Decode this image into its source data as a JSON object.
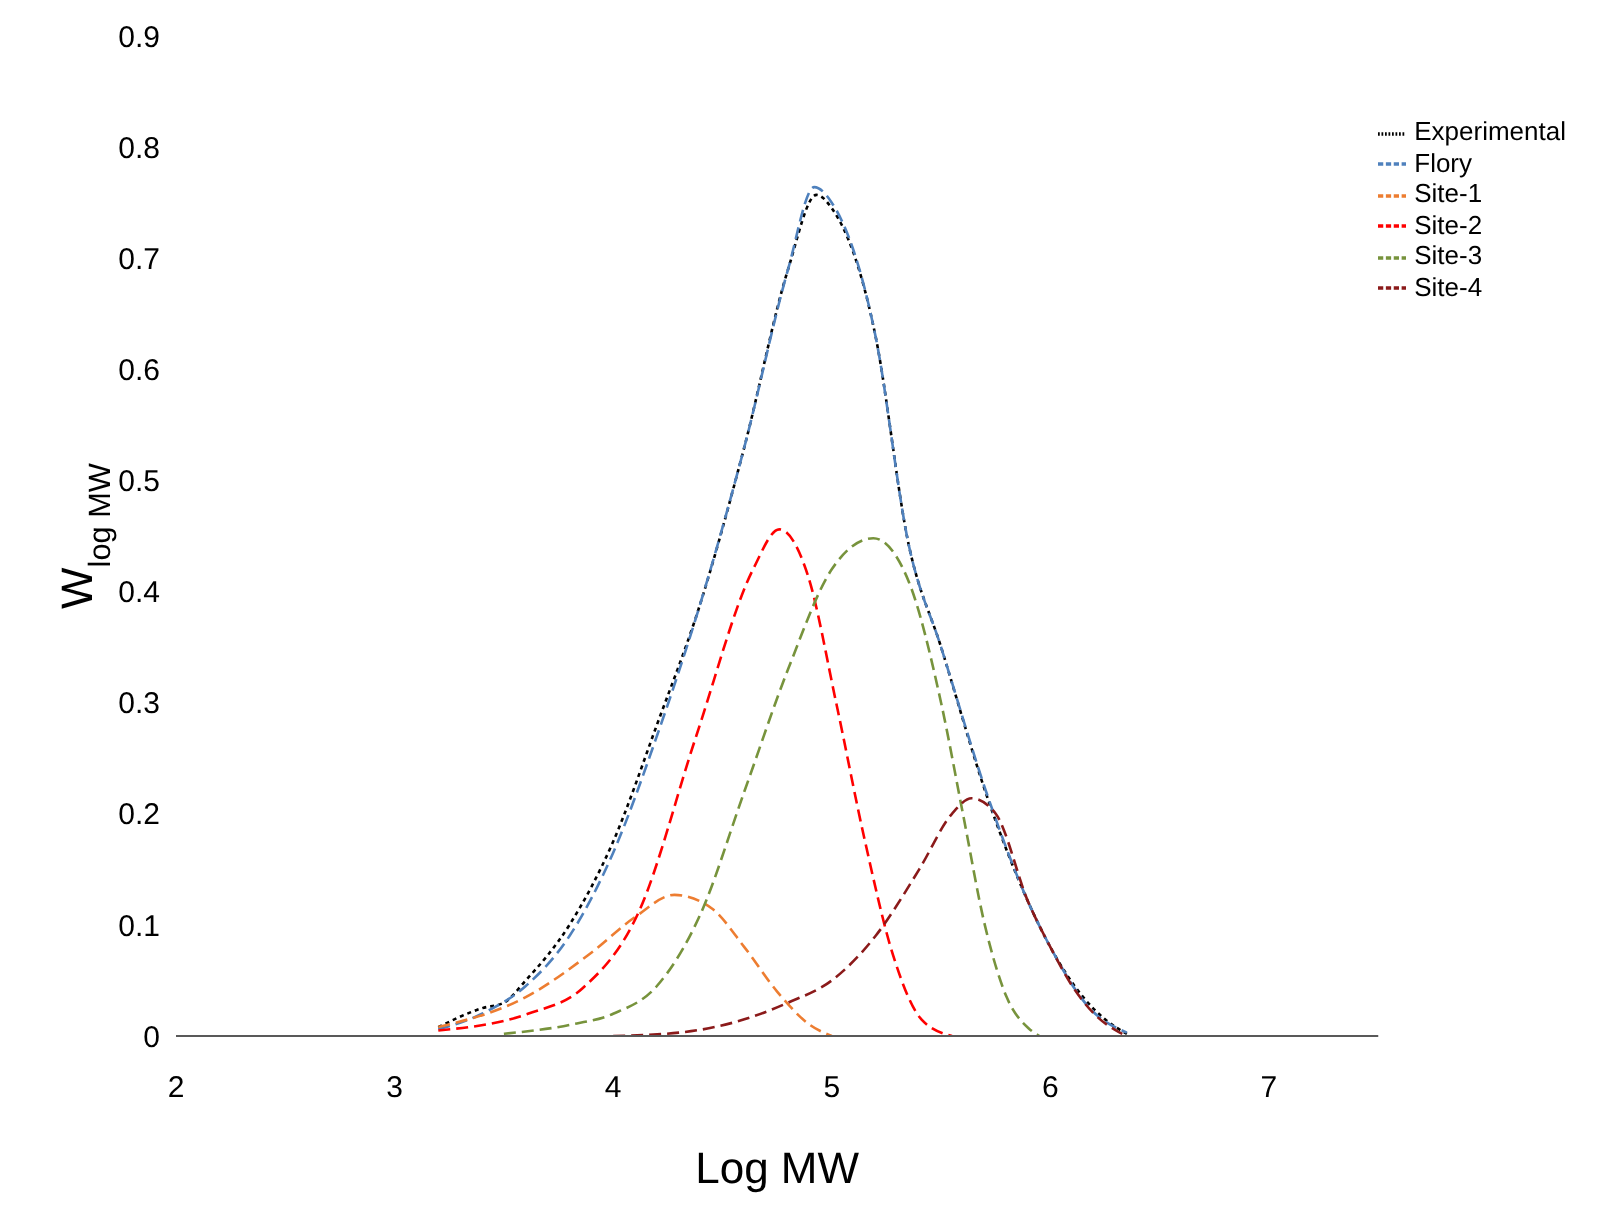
{
  "chart_data": {
    "type": "line",
    "xlabel": "Log MW",
    "ylabel": "W$_{log MW}$",
    "xlim": [
      2,
      7.5
    ],
    "xticks": [
      2,
      3,
      4,
      5,
      6,
      7
    ],
    "ylim": [
      0,
      0.9
    ],
    "yticks": [
      0,
      0.1,
      0.2,
      0.3,
      0.4,
      0.5,
      0.6,
      0.7,
      0.8,
      0.9
    ],
    "grid": false,
    "legend": "top right",
    "marker": "none",
    "series": [
      {
        "name": "Experimental",
        "color": "#000000",
        "line_style": "dotted",
        "x": [
          3.2,
          3.4,
          3.5,
          3.6,
          3.8,
          4.0,
          4.2,
          4.4,
          4.6,
          4.8,
          4.93,
          5.0,
          5.2,
          5.35,
          5.5,
          5.72,
          5.9,
          6.0,
          6.15,
          6.25,
          6.35
        ],
        "values": [
          0.008,
          0.025,
          0.03,
          0.05,
          0.1,
          0.175,
          0.28,
          0.39,
          0.53,
          0.69,
          0.757,
          0.745,
          0.63,
          0.444,
          0.35,
          0.21,
          0.12,
          0.08,
          0.035,
          0.015,
          0.002
        ]
      },
      {
        "name": "Flory",
        "color": "#4f81bd",
        "line_style": "dashed",
        "x": [
          3.2,
          3.4,
          3.6,
          3.8,
          4.0,
          4.2,
          4.4,
          4.6,
          4.8,
          4.92,
          5.0,
          5.2,
          5.35,
          5.5,
          5.72,
          5.9,
          6.0,
          6.18,
          6.35
        ],
        "values": [
          0.006,
          0.02,
          0.045,
          0.09,
          0.165,
          0.27,
          0.39,
          0.53,
          0.69,
          0.764,
          0.75,
          0.63,
          0.444,
          0.35,
          0.212,
          0.12,
          0.08,
          0.025,
          0.003
        ]
      },
      {
        "name": "Site-1",
        "color": "#ed7d31",
        "line_style": "dashed",
        "x": [
          3.2,
          3.6,
          3.9,
          4.1,
          4.28,
          4.45,
          4.6,
          4.75,
          4.9,
          5.0
        ],
        "values": [
          0.008,
          0.035,
          0.075,
          0.107,
          0.127,
          0.115,
          0.08,
          0.04,
          0.01,
          0
        ]
      },
      {
        "name": "Site-2",
        "color": "#ff0000",
        "line_style": "dashed",
        "x": [
          3.2,
          3.61,
          3.86,
          4.12,
          4.38,
          4.64,
          4.76,
          4.89,
          5.02,
          5.15,
          5.28,
          5.41,
          5.55
        ],
        "values": [
          0.005,
          0.02,
          0.043,
          0.113,
          0.27,
          0.42,
          0.456,
          0.415,
          0.3,
          0.177,
          0.073,
          0.015,
          0
        ]
      },
      {
        "name": "Site-3",
        "color": "#77933c",
        "line_style": "dashed",
        "x": [
          3.5,
          3.8,
          4.0,
          4.2,
          4.4,
          4.6,
          4.8,
          5.0,
          5.19,
          5.35,
          5.5,
          5.6,
          5.7,
          5.8,
          5.9,
          5.95
        ],
        "values": [
          0.002,
          0.01,
          0.02,
          0.045,
          0.11,
          0.22,
          0.33,
          0.42,
          0.448,
          0.41,
          0.3,
          0.2,
          0.1,
          0.035,
          0.007,
          0
        ]
      },
      {
        "name": "Site-4",
        "color": "#8b1a1a",
        "line_style": "dashed",
        "x": [
          4.0,
          4.3,
          4.6,
          4.8,
          5.0,
          5.2,
          5.4,
          5.55,
          5.64,
          5.75,
          5.9,
          6.0,
          6.1,
          6.2,
          6.3,
          6.35
        ],
        "values": [
          0,
          0.003,
          0.015,
          0.03,
          0.05,
          0.09,
          0.15,
          0.2,
          0.214,
          0.2,
          0.12,
          0.08,
          0.045,
          0.02,
          0.005,
          0
        ]
      }
    ]
  }
}
